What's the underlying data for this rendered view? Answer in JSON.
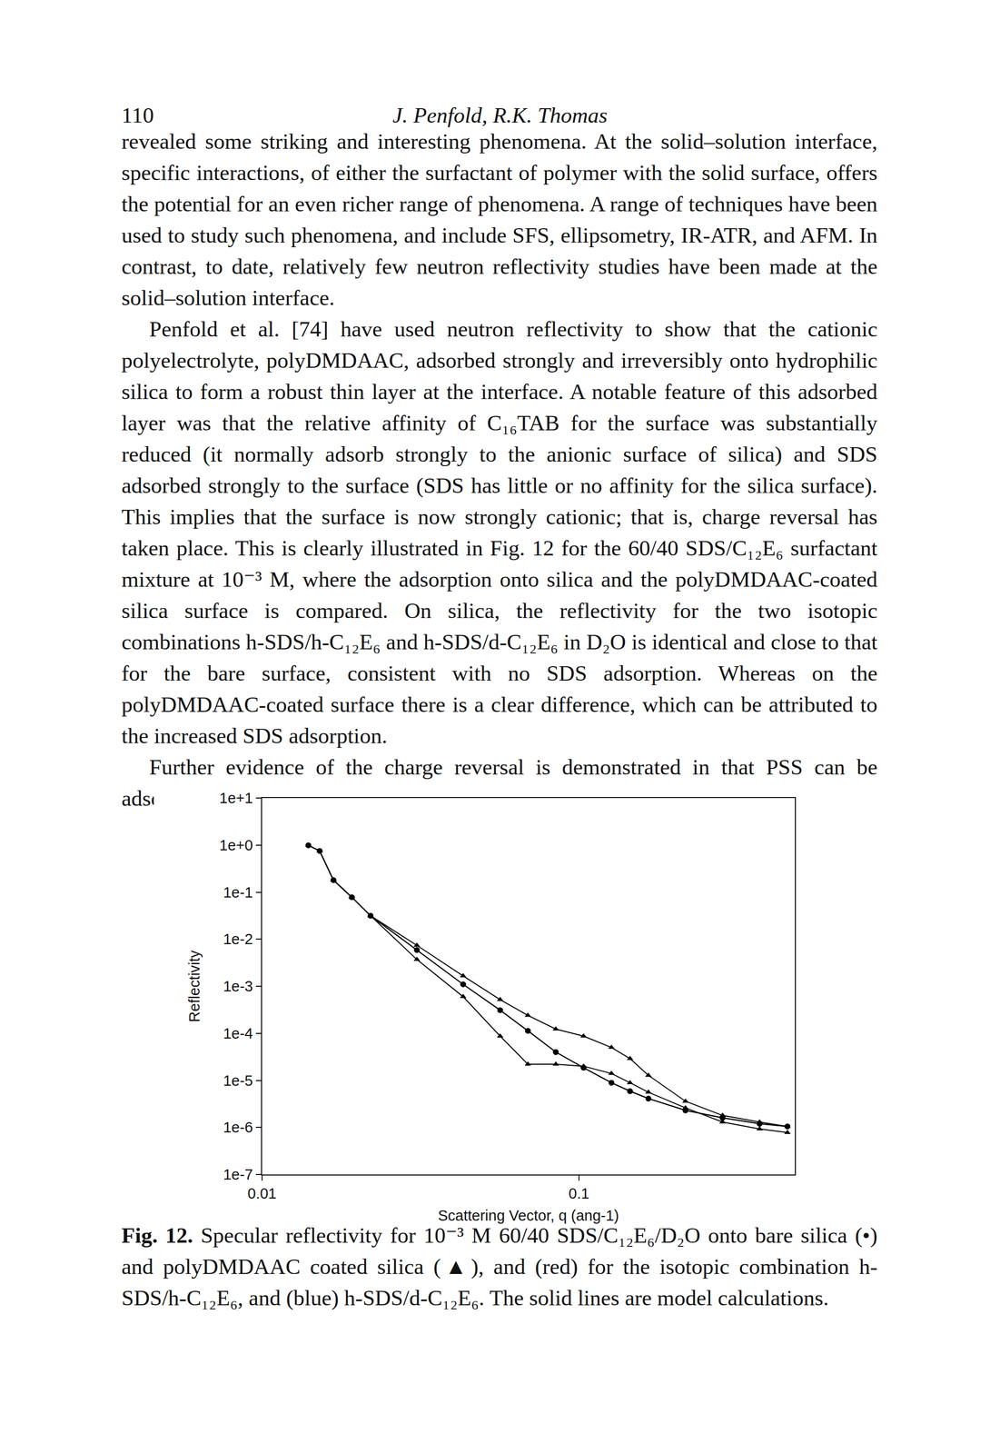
{
  "header": {
    "page": "110",
    "authors": "J. Penfold, R.K. Thomas"
  },
  "paragraphs": [
    "revealed some striking and interesting phenomena. At the solid–solution interface, specific interactions, of either the surfactant of polymer with the solid surface, offers the potential for an even richer range of phenomena. A range of techniques have been used to study such phenomena, and include SFS, ellipsometry, IR-ATR, and AFM. In contrast, to date, relatively few neutron reflectivity studies have been made at the solid–solution interface.",
    "Penfold et al. [74] have used neutron reflectivity to show that the cationic polyelectrolyte, polyDMDAAC, adsorbed strongly and irreversibly onto hydrophilic silica to form a robust thin layer at the interface. A notable feature of this adsorbed layer was that the relative affinity of C₁₆TAB for the surface was substantially reduced (it normally adsorb strongly to the anionic surface of silica) and SDS adsorbed strongly to the surface (SDS has little or no affinity for the silica surface). This implies that the surface is now strongly cationic; that is, charge reversal has taken place. This is clearly illustrated in Fig. 12 for the 60/40 SDS/C₁₂E₆ surfactant mixture at 10⁻³ M, where the adsorption onto silica and the polyDMDAAC-coated silica surface is compared. On silica, the reflectivity for the two isotopic combinations h-SDS/h-C₁₂E₆ and h-SDS/d-C₁₂E₆ in D₂O is identical and close to that for the bare surface, consistent with no SDS adsorption. Whereas on the polyDMDAAC-coated surface there is a clear difference, which can be attributed to the increased SDS adsorption.",
    "Further evidence of the charge reversal is demonstrated in that PSS can be adsorbed into the polyDMDAAC-coated surface, and that surface now becomes"
  ],
  "chart_data": {
    "type": "scatter",
    "x_label": "Scattering Vector, q (ang-1)",
    "y_label": "Reflectivity",
    "log": true,
    "grid": false,
    "xlim": [
      0.01,
      0.48
    ],
    "xticks": [
      0.01,
      0.1
    ],
    "ylim": [
      1e-07,
      10
    ],
    "yticks": [
      {
        "value": 10,
        "label": "1e+1"
      },
      {
        "value": 1,
        "label": "1e+0"
      },
      {
        "value": 0.1,
        "label": "1e-1"
      },
      {
        "value": 0.01,
        "label": "1e-2"
      },
      {
        "value": 0.001,
        "label": "1e-3"
      },
      {
        "value": 0.0001,
        "label": "1e-4"
      },
      {
        "value": 1e-05,
        "label": "1e-5"
      },
      {
        "value": 1e-06,
        "label": "1e-6"
      },
      {
        "value": 1e-07,
        "label": "1e-7"
      }
    ],
    "x": [
      0.014,
      0.0152,
      0.0168,
      0.0192,
      0.022,
      0.0308,
      0.0431,
      0.0564,
      0.069,
      0.0845,
      0.1034,
      0.1266,
      0.1449,
      0.1656,
      0.2168,
      0.2838,
      0.3715,
      0.4548
    ],
    "series": [
      {
        "color": "#000000",
        "marker": "circle",
        "line_style": "solid",
        "values": [
          0.99,
          0.75,
          0.18,
          0.078,
          0.0315,
          0.0059,
          0.0011,
          0.00031,
          0.000113,
          4e-05,
          1.86e-05,
          8.9e-06,
          5.9e-06,
          4.1e-06,
          2.3e-06,
          1.6e-06,
          1.2e-06,
          1.05e-06
        ]
      },
      {
        "color": "#000000",
        "marker": "circle",
        "line_style": "solid",
        "values": [
          0.99,
          0.75,
          0.18,
          0.078,
          0.0315,
          0.0059,
          0.0011,
          0.00031,
          0.000113,
          4e-05,
          1.86e-05,
          8.9e-06,
          5.9e-06,
          4.1e-06,
          2.3e-06,
          1.6e-06,
          1.2e-06,
          1.05e-06
        ]
      },
      {
        "color": "#000000",
        "marker": "triangle",
        "line_style": "solid",
        "values": [
          0.99,
          0.75,
          0.18,
          0.078,
          0.0315,
          0.0037,
          0.0006,
          8.7e-05,
          2.2e-05,
          2.2e-05,
          2e-05,
          1.4e-05,
          8.9e-06,
          5.6e-06,
          2.6e-06,
          1.3e-06,
          9.3e-07,
          7.8e-07
        ]
      },
      {
        "color": "#000000",
        "marker": "triangle",
        "line_style": "solid",
        "values": [
          0.99,
          0.75,
          0.18,
          0.078,
          0.0315,
          0.0074,
          0.00166,
          0.00052,
          0.00024,
          0.000123,
          8.7e-05,
          5e-05,
          2.9e-05,
          1.28e-05,
          3.6e-06,
          1.8e-06,
          1.3e-06,
          1.05e-06
        ]
      }
    ]
  },
  "caption": {
    "label": "Fig. 12.",
    "text": "Specular reflectivity for 10⁻³ M 60/40 SDS/C₁₂E₆/D₂O onto bare silica (•) and polyDMDAAC coated silica (▲), and (red) for the isotopic combination h-SDS/h-C₁₂E₆, and (blue) h-SDS/d-C₁₂E₆. The solid lines are model calculations."
  }
}
